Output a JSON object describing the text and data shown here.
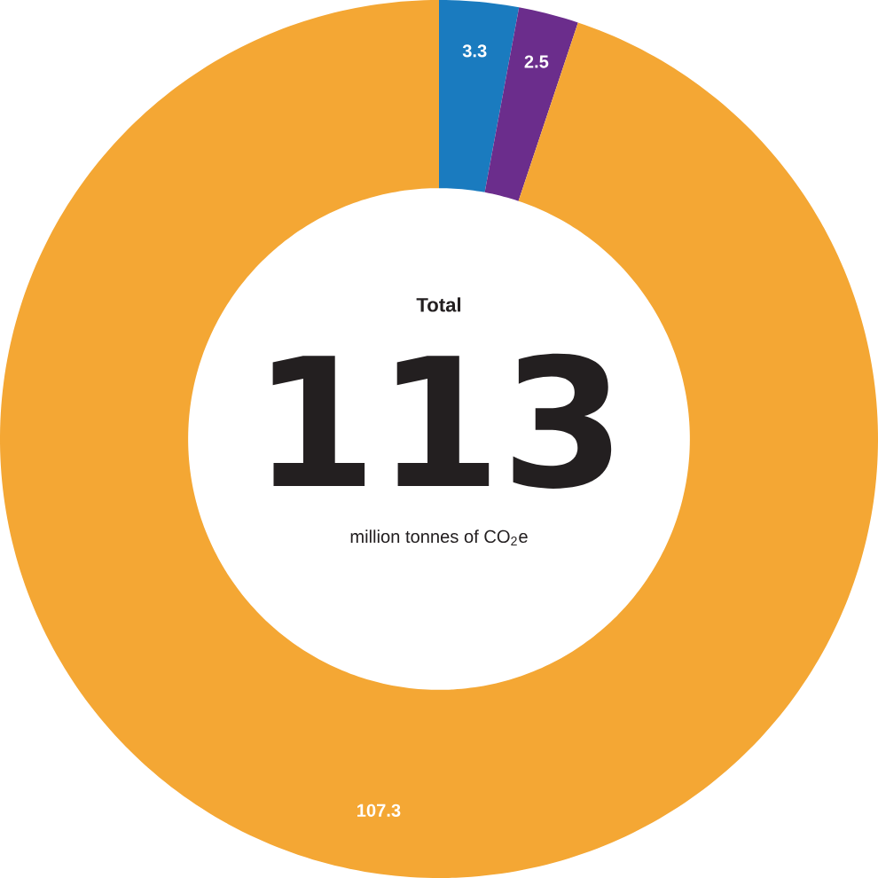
{
  "chart_data": {
    "type": "donut",
    "categories": [
      null,
      null,
      null
    ],
    "values": [
      3.3,
      2.5,
      107.3
    ],
    "colors": [
      "#1a7bbf",
      "#6b2d8c",
      "#f4a734"
    ],
    "data_labels": true,
    "annotations": [
      "Total",
      "113",
      "million tonnes of CO$_{2}$e"
    ]
  }
}
